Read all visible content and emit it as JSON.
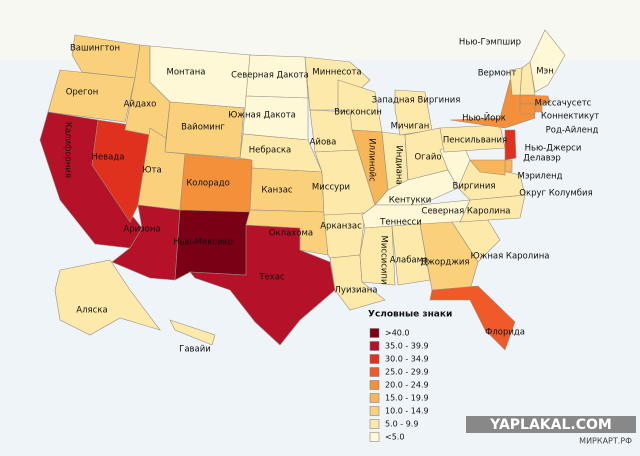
{
  "states": [
    {
      "name": "Вашингтон",
      "color": "#fad07a"
    },
    {
      "name": "Орегон",
      "color": "#fad07a"
    },
    {
      "name": "Калифорния",
      "color": "#b5122a"
    },
    {
      "name": "Невада",
      "color": "#e0301e"
    },
    {
      "name": "Айдахо",
      "color": "#fad07a"
    },
    {
      "name": "Монтана",
      "color": "#fff8d6"
    },
    {
      "name": "Вайоминг",
      "color": "#fad07a"
    },
    {
      "name": "Юта",
      "color": "#fad07a"
    },
    {
      "name": "Аризона",
      "color": "#b5122a"
    },
    {
      "name": "Колорадо",
      "color": "#f39039"
    },
    {
      "name": "Нью-Мексико",
      "color": "#7a0015"
    },
    {
      "name": "Техас",
      "color": "#b5122a"
    },
    {
      "name": "Северная Дакота",
      "color": "#fff8d6"
    },
    {
      "name": "Южная Дакота",
      "color": "#fff8d6"
    },
    {
      "name": "Небраска",
      "color": "#fde9a9"
    },
    {
      "name": "Канзас",
      "color": "#fad07a"
    },
    {
      "name": "Оклахома",
      "color": "#fad07a"
    },
    {
      "name": "Миннесота",
      "color": "#fde9a9"
    },
    {
      "name": "Айова",
      "color": "#fde9a9"
    },
    {
      "name": "Миссури",
      "color": "#fde9a9"
    },
    {
      "name": "Арканзас",
      "color": "#fde9a9"
    },
    {
      "name": "Луизиана",
      "color": "#fde9a9"
    },
    {
      "name": "Висконсин",
      "color": "#fde9a9"
    },
    {
      "name": "Иллинойс",
      "color": "#f7b65a"
    },
    {
      "name": "Индиана",
      "color": "#fde9a9"
    },
    {
      "name": "Мичиган",
      "color": "#fde9a9"
    },
    {
      "name": "Огайо",
      "color": "#fde9a9"
    },
    {
      "name": "Кентукки",
      "color": "#fff8d6"
    },
    {
      "name": "Теннесси",
      "color": "#fff8d6"
    },
    {
      "name": "Миссисипи",
      "color": "#fde9a9"
    },
    {
      "name": "Алабама",
      "color": "#fde9a9"
    },
    {
      "name": "Джорджия",
      "color": "#fad07a"
    },
    {
      "name": "Флорида",
      "color": "#f05a28"
    },
    {
      "name": "Южная Каролина",
      "color": "#fde9a9"
    },
    {
      "name": "Северная Каролина",
      "color": "#fde9a9"
    },
    {
      "name": "Виргиния",
      "color": "#fde9a9"
    },
    {
      "name": "Западная Виргиния",
      "color": "#fff8d6"
    },
    {
      "name": "Пенсильвания",
      "color": "#fde9a9"
    },
    {
      "name": "Нью-Йорк",
      "color": "#f39039"
    },
    {
      "name": "Нью-Гэмпшир",
      "color": "#fde9a9"
    },
    {
      "name": "Вермонт",
      "color": "#fde9a9"
    },
    {
      "name": "Мэн",
      "color": "#fff8d6"
    },
    {
      "name": "Массачусетс",
      "color": "#f39039"
    },
    {
      "name": "Коннектикут",
      "color": "#f39039"
    },
    {
      "name": "Род-Айленд",
      "color": "#f39039"
    },
    {
      "name": "Нью-Джерси",
      "color": "#e0301e"
    },
    {
      "name": "Делавэр",
      "color": "#f7b65a"
    },
    {
      "name": "Мэриленд",
      "color": "#f7b65a"
    },
    {
      "name": "Округ Колумбия",
      "color": "#fad07a"
    },
    {
      "name": "Аляска",
      "color": "#fde9a9"
    },
    {
      "name": "Гавайи",
      "color": "#fde9a9"
    }
  ],
  "legend": {
    "title": "Условные знаки",
    "items": [
      {
        "label": ">40.0",
        "color": "#7a0015"
      },
      {
        "label": "35.0 - 39.9",
        "color": "#b5122a"
      },
      {
        "label": "30.0 - 34.9",
        "color": "#e0301e"
      },
      {
        "label": "25.0 - 29.9",
        "color": "#f05a28"
      },
      {
        "label": "20.0 - 24.9",
        "color": "#f39039"
      },
      {
        "label": "15.0 - 19.9",
        "color": "#f7b65a"
      },
      {
        "label": "10.0 - 14.9",
        "color": "#fad07a"
      },
      {
        "label": "5.0 - 9.9",
        "color": "#fde9a9"
      },
      {
        "label": "<5.0",
        "color": "#fff8d6"
      }
    ]
  },
  "watermarks": [
    "YAPLAKAL.COM",
    "МИРКАРТ.РФ"
  ]
}
